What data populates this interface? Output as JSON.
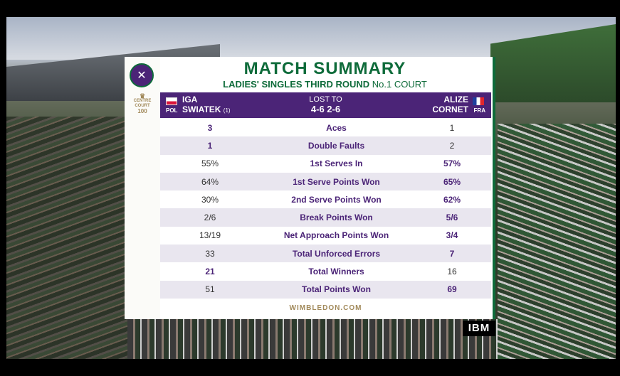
{
  "header": {
    "title": "MATCH SUMMARY",
    "round": "LADIES' SINGLES THIRD ROUND",
    "court": "No.1 COURT",
    "logo_icon": "wimbledon-crossed-rackets-icon",
    "cc100_line1": "CENTRE",
    "cc100_line2": "COURT",
    "cc100_line3": "100"
  },
  "player1": {
    "first": "IGA",
    "last": "SWIATEK",
    "seed": "(1)",
    "country": "POL"
  },
  "player2": {
    "first": "ALIZE",
    "last": "CORNET",
    "country": "FRA"
  },
  "result": {
    "label": "LOST TO",
    "score": "4-6 2-6"
  },
  "stats": [
    {
      "p1": "3",
      "label": "Aces",
      "p2": "1",
      "winner": "p1"
    },
    {
      "p1": "1",
      "label": "Double Faults",
      "p2": "2",
      "winner": "p1"
    },
    {
      "p1": "55%",
      "label": "1st Serves In",
      "p2": "57%",
      "winner": "p2"
    },
    {
      "p1": "64%",
      "label": "1st Serve Points Won",
      "p2": "65%",
      "winner": "p2"
    },
    {
      "p1": "30%",
      "label": "2nd Serve Points Won",
      "p2": "62%",
      "winner": "p2"
    },
    {
      "p1": "2/6",
      "label": "Break Points Won",
      "p2": "5/6",
      "winner": "p2"
    },
    {
      "p1": "13/19",
      "label": "Net Approach Points Won",
      "p2": "3/4",
      "winner": "p2"
    },
    {
      "p1": "33",
      "label": "Total Unforced Errors",
      "p2": "7",
      "winner": "p2"
    },
    {
      "p1": "21",
      "label": "Total Winners",
      "p2": "16",
      "winner": "p1"
    },
    {
      "p1": "51",
      "label": "Total Points Won",
      "p2": "69",
      "winner": "p2"
    }
  ],
  "footer": "WIMBLEDON.COM",
  "sponsor": "IBM",
  "colors": {
    "purple": "#4b2477",
    "green": "#0e6b3a",
    "gold": "#a1895a"
  }
}
